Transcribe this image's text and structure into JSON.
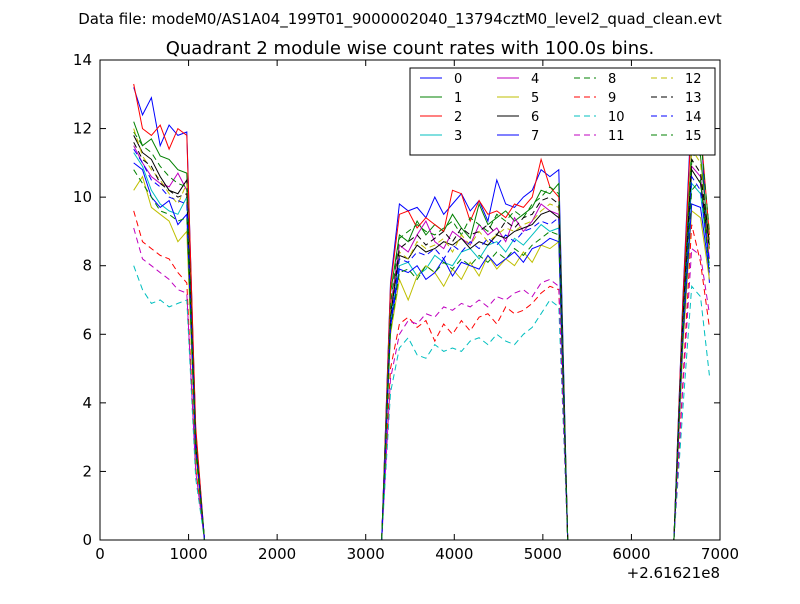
{
  "suptitle": "Data file: modeM0/AS1A04_199T01_9000002040_13794cztM0_level2_quad_clean.evt",
  "chart_data": {
    "type": "line",
    "title": "Quadrant 2 module wise count rates with 100.0s bins.",
    "xlabel": "",
    "ylabel": "",
    "x_offset_label": "+2.61621e8",
    "xlim": [
      0,
      7000
    ],
    "ylim": [
      0,
      14
    ],
    "xticks": [
      0,
      1000,
      2000,
      3000,
      4000,
      5000,
      6000,
      7000
    ],
    "yticks": [
      0,
      2,
      4,
      6,
      8,
      10,
      12,
      14
    ],
    "grid": false,
    "legend_position": "top-right",
    "legend_columns": 4,
    "x": [
      380,
      480,
      580,
      680,
      780,
      880,
      980,
      1080,
      1180,
      1280,
      1380,
      1480,
      1580,
      1680,
      1780,
      1880,
      1980,
      2080,
      2180,
      2280,
      2380,
      2480,
      2580,
      2680,
      2780,
      2880,
      2980,
      3080,
      3180,
      3280,
      3380,
      3480,
      3580,
      3680,
      3780,
      3880,
      3980,
      4080,
      4180,
      4280,
      4380,
      4480,
      4580,
      4680,
      4780,
      4880,
      4980,
      5080,
      5180,
      5280,
      5380,
      5480,
      5580,
      5680,
      5780,
      5880,
      5980,
      6080,
      6180,
      6280,
      6380,
      6480,
      6580,
      6680,
      6780,
      6880
    ],
    "series": [
      {
        "name": "0",
        "color": "#0000ff",
        "dash": "solid",
        "values": [
          13.2,
          12.4,
          12.9,
          11.5,
          12.1,
          11.8,
          11.9,
          3.2,
          0,
          0,
          0,
          0,
          0,
          0,
          0,
          0,
          0,
          0,
          0,
          0,
          0,
          0,
          0,
          0,
          0,
          0,
          0,
          0,
          0,
          7.5,
          9.8,
          9.6,
          9.7,
          9.4,
          10.0,
          9.5,
          9.8,
          10.1,
          9.6,
          9.9,
          9.3,
          10.5,
          9.8,
          9.7,
          10.0,
          10.2,
          10.8,
          10.6,
          10.8,
          0,
          0,
          0,
          0,
          0,
          0,
          0,
          0,
          0,
          0,
          0,
          0,
          0,
          7.0,
          12.7,
          12.3,
          7.5
        ]
      },
      {
        "name": "1",
        "color": "#008000",
        "dash": "solid",
        "values": [
          12.2,
          11.5,
          11.7,
          11.2,
          11.1,
          10.8,
          10.7,
          3.0,
          0,
          0,
          0,
          0,
          0,
          0,
          0,
          0,
          0,
          0,
          0,
          0,
          0,
          0,
          0,
          0,
          0,
          0,
          0,
          0,
          0,
          7.2,
          8.9,
          8.7,
          9.3,
          8.9,
          9.2,
          9.0,
          9.5,
          9.1,
          8.8,
          9.8,
          9.2,
          9.4,
          9.6,
          9.3,
          9.5,
          9.7,
          10.2,
          10.1,
          10.4,
          0,
          0,
          0,
          0,
          0,
          0,
          0,
          0,
          0,
          0,
          0,
          0,
          0,
          6.6,
          11.5,
          11.2,
          8.6
        ]
      },
      {
        "name": "2",
        "color": "#ff0000",
        "dash": "solid",
        "values": [
          13.3,
          12.0,
          11.8,
          12.1,
          11.4,
          12.0,
          11.8,
          3.3,
          0,
          0,
          0,
          0,
          0,
          0,
          0,
          0,
          0,
          0,
          0,
          0,
          0,
          0,
          0,
          0,
          0,
          0,
          0,
          0,
          0,
          7.4,
          9.5,
          9.6,
          9.1,
          9.4,
          9.2,
          9.0,
          10.2,
          10.1,
          9.3,
          9.9,
          9.5,
          9.6,
          9.4,
          9.8,
          9.7,
          10.0,
          11.1,
          10.3,
          10.0,
          0,
          0,
          0,
          0,
          0,
          0,
          0,
          0,
          0,
          0,
          0,
          0,
          0,
          6.9,
          12.4,
          12.0,
          8.9
        ]
      },
      {
        "name": "3",
        "color": "#00bfbf",
        "dash": "solid",
        "values": [
          11.3,
          10.9,
          10.2,
          9.8,
          9.6,
          9.5,
          10.0,
          2.8,
          0,
          0,
          0,
          0,
          0,
          0,
          0,
          0,
          0,
          0,
          0,
          0,
          0,
          0,
          0,
          0,
          0,
          0,
          0,
          0,
          0,
          6.4,
          8.0,
          8.1,
          7.7,
          7.9,
          8.3,
          8.1,
          8.0,
          8.4,
          8.5,
          8.2,
          8.6,
          8.7,
          8.4,
          8.8,
          8.6,
          8.9,
          9.2,
          9.0,
          9.1,
          0,
          0,
          0,
          0,
          0,
          0,
          0,
          0,
          0,
          0,
          0,
          0,
          0,
          6.0,
          10.4,
          10.1,
          8.0
        ]
      },
      {
        "name": "4",
        "color": "#bf00bf",
        "dash": "solid",
        "values": [
          11.5,
          11.0,
          10.6,
          10.4,
          10.3,
          10.7,
          10.2,
          2.9,
          0,
          0,
          0,
          0,
          0,
          0,
          0,
          0,
          0,
          0,
          0,
          0,
          0,
          0,
          0,
          0,
          0,
          0,
          0,
          0,
          0,
          6.8,
          8.6,
          8.4,
          8.9,
          9.3,
          8.7,
          8.5,
          9.0,
          8.8,
          8.6,
          9.2,
          8.9,
          9.1,
          8.7,
          9.4,
          9.0,
          9.3,
          9.8,
          9.6,
          9.5,
          0,
          0,
          0,
          0,
          0,
          0,
          0,
          0,
          0,
          0,
          0,
          0,
          0,
          6.4,
          10.9,
          10.6,
          8.2
        ]
      },
      {
        "name": "5",
        "color": "#bfbf00",
        "dash": "solid",
        "values": [
          10.2,
          10.6,
          9.7,
          9.5,
          9.3,
          8.7,
          9.0,
          2.5,
          0,
          0,
          0,
          0,
          0,
          0,
          0,
          0,
          0,
          0,
          0,
          0,
          0,
          0,
          0,
          0,
          0,
          0,
          0,
          0,
          0,
          6.0,
          7.6,
          7.0,
          7.7,
          8.0,
          7.8,
          7.4,
          7.9,
          7.6,
          8.1,
          7.7,
          8.3,
          7.9,
          8.2,
          8.0,
          8.4,
          8.1,
          8.6,
          8.5,
          8.7,
          0,
          0,
          0,
          0,
          0,
          0,
          0,
          0,
          0,
          0,
          0,
          0,
          0,
          5.6,
          9.6,
          9.4,
          7.6
        ]
      },
      {
        "name": "6",
        "color": "#000000",
        "dash": "solid",
        "values": [
          11.8,
          11.3,
          11.1,
          10.6,
          10.2,
          10.1,
          10.5,
          2.9,
          0,
          0,
          0,
          0,
          0,
          0,
          0,
          0,
          0,
          0,
          0,
          0,
          0,
          0,
          0,
          0,
          0,
          0,
          0,
          0,
          0,
          6.6,
          8.3,
          8.2,
          8.6,
          8.4,
          8.5,
          8.7,
          8.6,
          8.8,
          8.5,
          8.7,
          8.6,
          8.9,
          8.8,
          9.0,
          9.1,
          9.2,
          9.5,
          9.6,
          9.4,
          0,
          0,
          0,
          0,
          0,
          0,
          0,
          0,
          0,
          0,
          0,
          0,
          0,
          6.3,
          10.8,
          10.4,
          8.5
        ]
      },
      {
        "name": "7",
        "color": "#0000ff",
        "dash": "solid",
        "values": [
          11.0,
          10.8,
          10.0,
          9.7,
          9.9,
          9.2,
          9.5,
          2.7,
          0,
          0,
          0,
          0,
          0,
          0,
          0,
          0,
          0,
          0,
          0,
          0,
          0,
          0,
          0,
          0,
          0,
          0,
          0,
          0,
          0,
          6.2,
          7.9,
          7.8,
          8.0,
          7.6,
          7.8,
          8.2,
          7.7,
          8.1,
          8.0,
          7.9,
          8.3,
          8.0,
          8.2,
          8.4,
          8.1,
          8.5,
          8.6,
          8.8,
          8.7,
          0,
          0,
          0,
          0,
          0,
          0,
          0,
          0,
          0,
          0,
          0,
          0,
          0,
          5.8,
          9.8,
          9.7,
          7.8
        ]
      },
      {
        "name": "8",
        "color": "#008000",
        "dash": "dashed",
        "values": [
          11.9,
          11.5,
          11.3,
          10.9,
          10.6,
          10.4,
          10.3,
          2.9,
          0,
          0,
          0,
          0,
          0,
          0,
          0,
          0,
          0,
          0,
          0,
          0,
          0,
          0,
          0,
          0,
          0,
          0,
          0,
          0,
          0,
          6.9,
          8.8,
          9.0,
          9.2,
          9.0,
          8.9,
          9.1,
          9.3,
          8.9,
          9.4,
          9.2,
          9.0,
          9.5,
          9.3,
          9.6,
          9.4,
          9.8,
          10.0,
          10.3,
          10.1,
          0,
          0,
          0,
          0,
          0,
          0,
          0,
          0,
          0,
          0,
          0,
          0,
          0,
          6.5,
          11.0,
          11.8,
          9.0
        ]
      },
      {
        "name": "9",
        "color": "#ff0000",
        "dash": "dashed",
        "values": [
          9.6,
          8.7,
          8.5,
          8.3,
          8.2,
          7.8,
          7.5,
          2.1,
          0,
          0,
          0,
          0,
          0,
          0,
          0,
          0,
          0,
          0,
          0,
          0,
          0,
          0,
          0,
          0,
          0,
          0,
          0,
          0,
          0,
          5.0,
          6.3,
          6.5,
          6.2,
          6.4,
          5.8,
          6.3,
          6.0,
          6.4,
          6.1,
          6.5,
          6.6,
          6.3,
          6.8,
          6.6,
          6.7,
          6.9,
          7.2,
          7.4,
          7.3,
          0,
          0,
          0,
          0,
          0,
          0,
          0,
          0,
          0,
          0,
          0,
          0,
          0,
          4.6,
          9.2,
          8.1,
          6.2
        ]
      },
      {
        "name": "10",
        "color": "#00bfbf",
        "dash": "dashed",
        "values": [
          8.0,
          7.3,
          6.9,
          7.0,
          6.8,
          6.9,
          7.0,
          1.8,
          0,
          0,
          0,
          0,
          0,
          0,
          0,
          0,
          0,
          0,
          0,
          0,
          0,
          0,
          0,
          0,
          0,
          0,
          0,
          0,
          0,
          4.3,
          5.6,
          5.9,
          5.4,
          5.3,
          5.7,
          5.5,
          5.6,
          5.5,
          5.8,
          5.9,
          5.7,
          6.0,
          5.8,
          5.7,
          6.0,
          6.2,
          6.6,
          7.0,
          6.8,
          0,
          0,
          0,
          0,
          0,
          0,
          0,
          0,
          0,
          0,
          0,
          0,
          0,
          3.8,
          7.4,
          7.1,
          4.8
        ]
      },
      {
        "name": "11",
        "color": "#bf00bf",
        "dash": "dashed",
        "values": [
          9.1,
          8.2,
          8.0,
          7.8,
          7.6,
          7.3,
          7.2,
          2.0,
          0,
          0,
          0,
          0,
          0,
          0,
          0,
          0,
          0,
          0,
          0,
          0,
          0,
          0,
          0,
          0,
          0,
          0,
          0,
          0,
          0,
          4.7,
          6.0,
          6.4,
          6.3,
          6.6,
          6.5,
          6.8,
          6.7,
          6.9,
          6.8,
          7.0,
          6.8,
          7.1,
          7.0,
          7.2,
          7.3,
          7.1,
          7.5,
          7.6,
          7.4,
          0,
          0,
          0,
          0,
          0,
          0,
          0,
          0,
          0,
          0,
          0,
          0,
          0,
          4.4,
          8.5,
          8.3,
          6.6
        ]
      },
      {
        "name": "12",
        "color": "#bfbf00",
        "dash": "dashed",
        "values": [
          12.0,
          11.2,
          10.8,
          10.5,
          10.1,
          9.8,
          10.4,
          2.8,
          0,
          0,
          0,
          0,
          0,
          0,
          0,
          0,
          0,
          0,
          0,
          0,
          0,
          0,
          0,
          0,
          0,
          0,
          0,
          0,
          0,
          6.7,
          8.4,
          8.2,
          8.7,
          8.5,
          8.6,
          8.8,
          8.4,
          8.9,
          8.6,
          9.0,
          8.7,
          8.9,
          9.1,
          9.0,
          9.2,
          9.3,
          9.6,
          9.8,
          9.7,
          0,
          0,
          0,
          0,
          0,
          0,
          0,
          0,
          0,
          0,
          0,
          0,
          0,
          6.2,
          11.4,
          11.0,
          8.4
        ]
      },
      {
        "name": "13",
        "color": "#000000",
        "dash": "dashed",
        "values": [
          11.6,
          11.1,
          10.9,
          10.4,
          10.2,
          10.0,
          10.1,
          2.8,
          0,
          0,
          0,
          0,
          0,
          0,
          0,
          0,
          0,
          0,
          0,
          0,
          0,
          0,
          0,
          0,
          0,
          0,
          0,
          0,
          0,
          6.5,
          8.5,
          8.7,
          8.9,
          8.6,
          8.8,
          9.0,
          8.7,
          9.1,
          8.9,
          9.0,
          9.2,
          8.9,
          9.3,
          9.1,
          9.4,
          9.5,
          9.9,
          10.0,
          9.8,
          0,
          0,
          0,
          0,
          0,
          0,
          0,
          0,
          0,
          0,
          0,
          0,
          0,
          6.4,
          11.1,
          10.7,
          8.7
        ]
      },
      {
        "name": "14",
        "color": "#0000ff",
        "dash": "dashed",
        "values": [
          11.4,
          11.0,
          10.5,
          10.3,
          10.0,
          9.9,
          9.8,
          2.7,
          0,
          0,
          0,
          0,
          0,
          0,
          0,
          0,
          0,
          0,
          0,
          0,
          0,
          0,
          0,
          0,
          0,
          0,
          0,
          0,
          0,
          6.3,
          8.2,
          8.1,
          8.4,
          8.3,
          8.5,
          8.2,
          8.6,
          8.4,
          8.7,
          8.5,
          8.8,
          8.6,
          8.9,
          8.7,
          9.0,
          9.1,
          9.3,
          9.2,
          9.4,
          0,
          0,
          0,
          0,
          0,
          0,
          0,
          0,
          0,
          0,
          0,
          0,
          0,
          6.1,
          10.6,
          10.2,
          8.1
        ]
      },
      {
        "name": "15",
        "color": "#008000",
        "dash": "dashed",
        "values": [
          10.8,
          10.4,
          10.0,
          9.6,
          9.5,
          9.3,
          9.4,
          2.6,
          0,
          0,
          0,
          0,
          0,
          0,
          0,
          0,
          0,
          0,
          0,
          0,
          0,
          0,
          0,
          0,
          0,
          0,
          0,
          0,
          0,
          6.1,
          7.8,
          7.9,
          7.6,
          8.0,
          7.8,
          8.1,
          7.9,
          8.2,
          8.0,
          8.3,
          8.1,
          8.4,
          8.2,
          8.5,
          8.3,
          8.6,
          8.8,
          9.0,
          8.9,
          0,
          0,
          0,
          0,
          0,
          0,
          0,
          0,
          0,
          0,
          0,
          0,
          0,
          5.9,
          10.2,
          10.5,
          7.9
        ]
      }
    ]
  }
}
